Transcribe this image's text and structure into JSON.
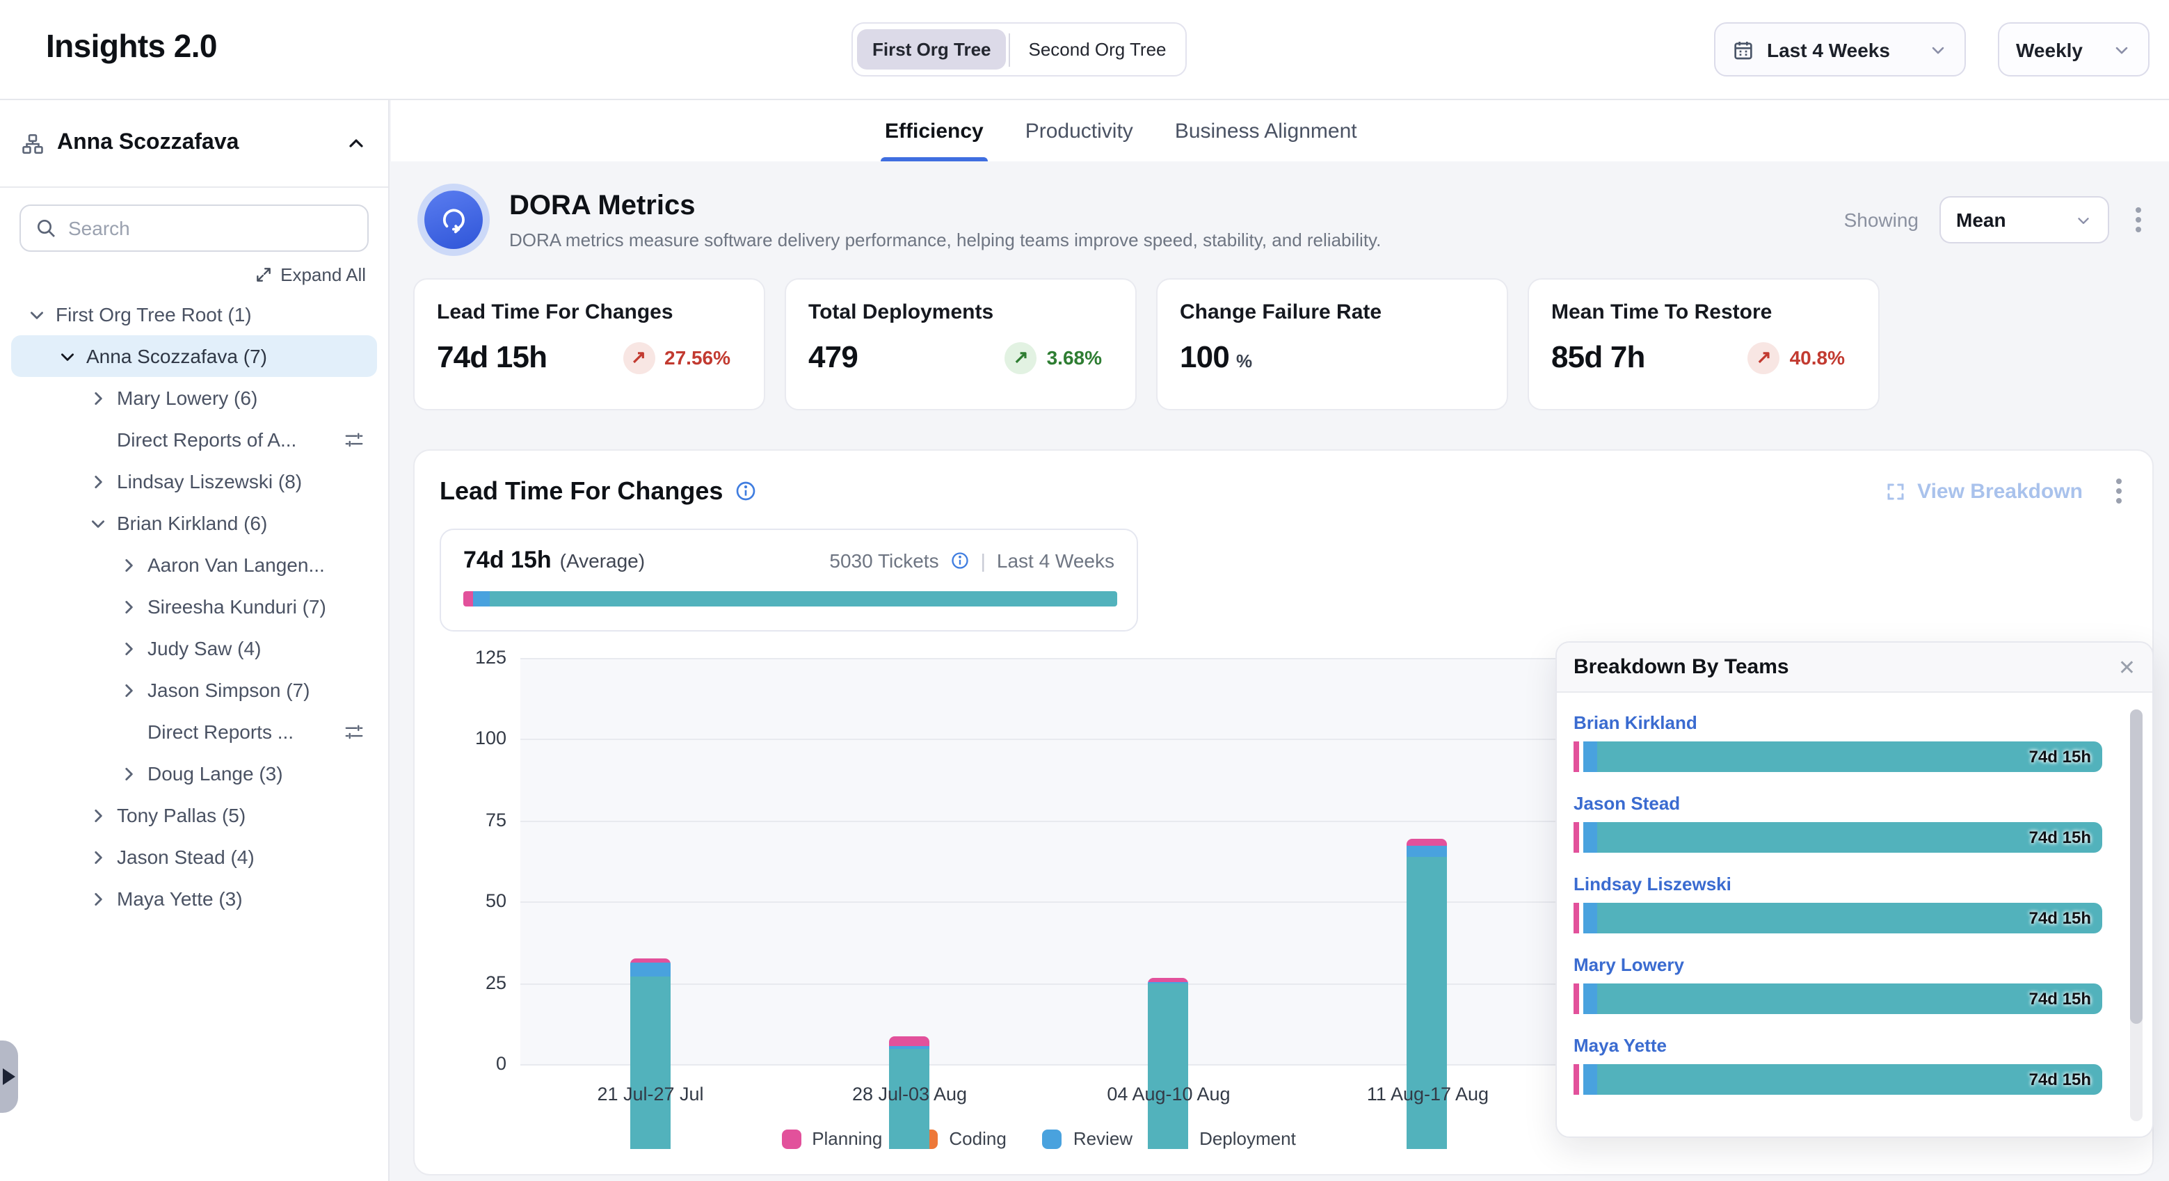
{
  "app": {
    "title": "Insights 2.0"
  },
  "topbar": {
    "org_tree_toggle": {
      "first": "First Org Tree",
      "second": "Second Org Tree",
      "active": "First Org Tree"
    },
    "date_range": "Last 4 Weeks",
    "granularity": "Weekly"
  },
  "sidebar": {
    "header_user": "Anna Scozzafava",
    "search_placeholder": "Search",
    "expand_all_label": "Expand All",
    "tree": [
      {
        "label": "First Org Tree Root (1)",
        "depth": 0,
        "chevron": "down",
        "selected": false,
        "filter": false
      },
      {
        "label": "Anna Scozzafava (7)",
        "depth": 1,
        "chevron": "down",
        "selected": true,
        "filter": false
      },
      {
        "label": "Mary Lowery (6)",
        "depth": 2,
        "chevron": "right",
        "selected": false,
        "filter": false
      },
      {
        "label": "Direct Reports of A...",
        "depth": 2,
        "chevron": "none",
        "selected": false,
        "filter": true
      },
      {
        "label": "Lindsay Liszewski (8)",
        "depth": 2,
        "chevron": "right",
        "selected": false,
        "filter": false
      },
      {
        "label": "Brian Kirkland (6)",
        "depth": 2,
        "chevron": "down",
        "selected": false,
        "filter": false
      },
      {
        "label": "Aaron Van Langen...",
        "depth": 3,
        "chevron": "right",
        "selected": false,
        "filter": false
      },
      {
        "label": "Sireesha Kunduri (7)",
        "depth": 3,
        "chevron": "right",
        "selected": false,
        "filter": false
      },
      {
        "label": "Judy Saw (4)",
        "depth": 3,
        "chevron": "right",
        "selected": false,
        "filter": false
      },
      {
        "label": "Jason Simpson (7)",
        "depth": 3,
        "chevron": "right",
        "selected": false,
        "filter": false
      },
      {
        "label": "Direct Reports ...",
        "depth": 3,
        "chevron": "none",
        "selected": false,
        "filter": true
      },
      {
        "label": "Doug Lange (3)",
        "depth": 3,
        "chevron": "right",
        "selected": false,
        "filter": false
      },
      {
        "label": "Tony Pallas (5)",
        "depth": 2,
        "chevron": "right",
        "selected": false,
        "filter": false
      },
      {
        "label": "Jason Stead (4)",
        "depth": 2,
        "chevron": "right",
        "selected": false,
        "filter": false
      },
      {
        "label": "Maya Yette (3)",
        "depth": 2,
        "chevron": "right",
        "selected": false,
        "filter": false
      }
    ]
  },
  "tabs": {
    "active": "Efficiency",
    "items": [
      {
        "label": "Efficiency"
      },
      {
        "label": "Productivity"
      },
      {
        "label": "Business Alignment"
      }
    ]
  },
  "dora": {
    "title": "DORA Metrics",
    "description": "DORA metrics measure software delivery performance, helping teams improve speed, stability, and reliability.",
    "showing_label": "Showing",
    "showing_value": "Mean"
  },
  "metric_cards": [
    {
      "title": "Lead Time For Changes",
      "value": "74d 15h",
      "suffix": "",
      "delta": "27.56%",
      "delta_dir": "up",
      "tone": "neg"
    },
    {
      "title": "Total Deployments",
      "value": "479",
      "suffix": "",
      "delta": "3.68%",
      "delta_dir": "up",
      "tone": "pos"
    },
    {
      "title": "Change Failure Rate",
      "value": "100",
      "suffix": "%",
      "delta": "",
      "delta_dir": "",
      "tone": ""
    },
    {
      "title": "Mean Time To Restore",
      "value": "85d 7h",
      "suffix": "",
      "delta": "40.8%",
      "delta_dir": "up",
      "tone": "neg"
    }
  ],
  "lead_time": {
    "title": "Lead Time For Changes",
    "average_value": "74d 15h",
    "average_label": "(Average)",
    "tickets": "5030 Tickets",
    "period": "Last 4 Weeks",
    "view_breakdown_label": "View Breakdown",
    "summary_bar": [
      {
        "name": "Planning",
        "pct": 1.5
      },
      {
        "name": "Review",
        "pct": 2.6
      },
      {
        "name": "Deployment",
        "pct": 95.9
      }
    ]
  },
  "chart_data": {
    "type": "bar",
    "stacked": true,
    "title": "Lead Time For Changes",
    "categories": [
      "21 Jul-27 Jul",
      "28 Jul-03 Aug",
      "04 Aug-10 Aug",
      "11 Aug-17 Aug"
    ],
    "series": [
      {
        "name": "Planning",
        "color": "#e2519b",
        "values": [
          1,
          3,
          1,
          2
        ]
      },
      {
        "name": "Coding",
        "color": "#ed7839",
        "values": [
          0,
          0,
          0,
          0
        ]
      },
      {
        "name": "Review",
        "color": "#49a2de",
        "values": [
          4.5,
          0.5,
          0.5,
          3.5
        ]
      },
      {
        "name": "Deployment",
        "color": "#52b2bc",
        "values": [
          53,
          31,
          51,
          90
        ]
      }
    ],
    "stack_order_bottom_to_top": [
      "Deployment",
      "Review",
      "Coding",
      "Planning"
    ],
    "ylim": [
      0,
      125
    ],
    "yticks": [
      0,
      25,
      50,
      75,
      100,
      125
    ],
    "grid": true,
    "legend_position": "bottom"
  },
  "breakdown": {
    "title": "Breakdown By Teams",
    "teams": [
      {
        "name": "Brian Kirkland",
        "value": "74d 15h"
      },
      {
        "name": "Jason Stead",
        "value": "74d 15h"
      },
      {
        "name": "Lindsay Liszewski",
        "value": "74d 15h"
      },
      {
        "name": "Mary Lowery",
        "value": "74d 15h"
      },
      {
        "name": "Maya Yette",
        "value": "74d 15h"
      }
    ]
  },
  "colors": {
    "accent_blue": "#3f6ee0",
    "link_blue": "#3a6bd0",
    "negative_red": "#c23a30",
    "positive_green": "#2e7d32",
    "planning_pink": "#e2519b",
    "coding_orange": "#ed7839",
    "review_blue": "#49a2de",
    "deployment_teal": "#52b2bc",
    "selected_row_bg": "#e2effa"
  }
}
